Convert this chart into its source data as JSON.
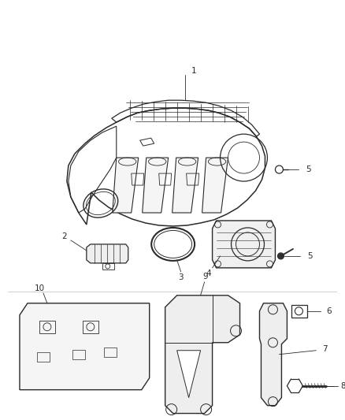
{
  "bg_color": "#ffffff",
  "line_color": "#2a2a2a",
  "label_color": "#2a2a2a",
  "figsize": [
    4.38,
    5.33
  ],
  "dpi": 100,
  "label_fs": 7.5
}
